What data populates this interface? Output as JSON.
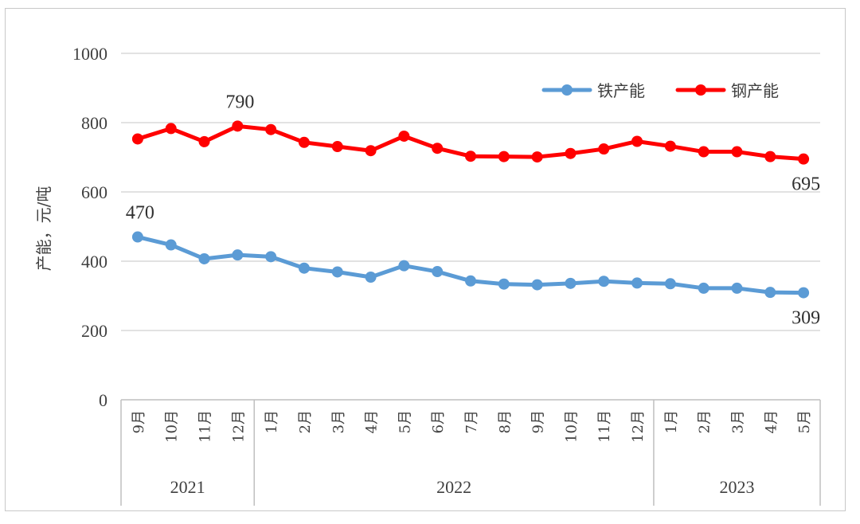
{
  "chart_data": {
    "type": "line",
    "title": "",
    "ylabel": "产能，元/吨",
    "xlabel": "",
    "ylim": [
      0,
      1000
    ],
    "yticks": [
      "0",
      "200",
      "400",
      "600",
      "800",
      "1000"
    ],
    "categories": [
      "9月",
      "10月",
      "11月",
      "12月",
      "1月",
      "2月",
      "3月",
      "4月",
      "5月",
      "6月",
      "7月",
      "8月",
      "9月",
      "10月",
      "11月",
      "12月",
      "1月",
      "2月",
      "3月",
      "4月",
      "5月"
    ],
    "groups": [
      {
        "label": "2021",
        "start": 0,
        "end": 3
      },
      {
        "label": "2022",
        "start": 4,
        "end": 15
      },
      {
        "label": "2023",
        "start": 16,
        "end": 20
      }
    ],
    "series": [
      {
        "name": "铁产能",
        "color": "#5b9bd5",
        "values": [
          470,
          447,
          407,
          418,
          413,
          380,
          369,
          354,
          387,
          370,
          343,
          334,
          332,
          336,
          342,
          337,
          335,
          322,
          322,
          310,
          309
        ],
        "data_labels": [
          {
            "index": 0,
            "text": "470",
            "pos": "above"
          },
          {
            "index": 20,
            "text": "309",
            "pos": "below"
          }
        ]
      },
      {
        "name": "钢产能",
        "color": "#ff0000",
        "values": [
          753,
          783,
          745,
          790,
          780,
          743,
          731,
          719,
          761,
          726,
          703,
          702,
          701,
          711,
          724,
          746,
          732,
          716,
          716,
          702,
          695
        ],
        "data_labels": [
          {
            "index": 3,
            "text": "790",
            "pos": "above"
          },
          {
            "index": 20,
            "text": "695",
            "pos": "below"
          }
        ]
      }
    ],
    "legend": {
      "position": "top-right",
      "entries": [
        "铁产能",
        "钢产能"
      ]
    },
    "grid": true
  }
}
